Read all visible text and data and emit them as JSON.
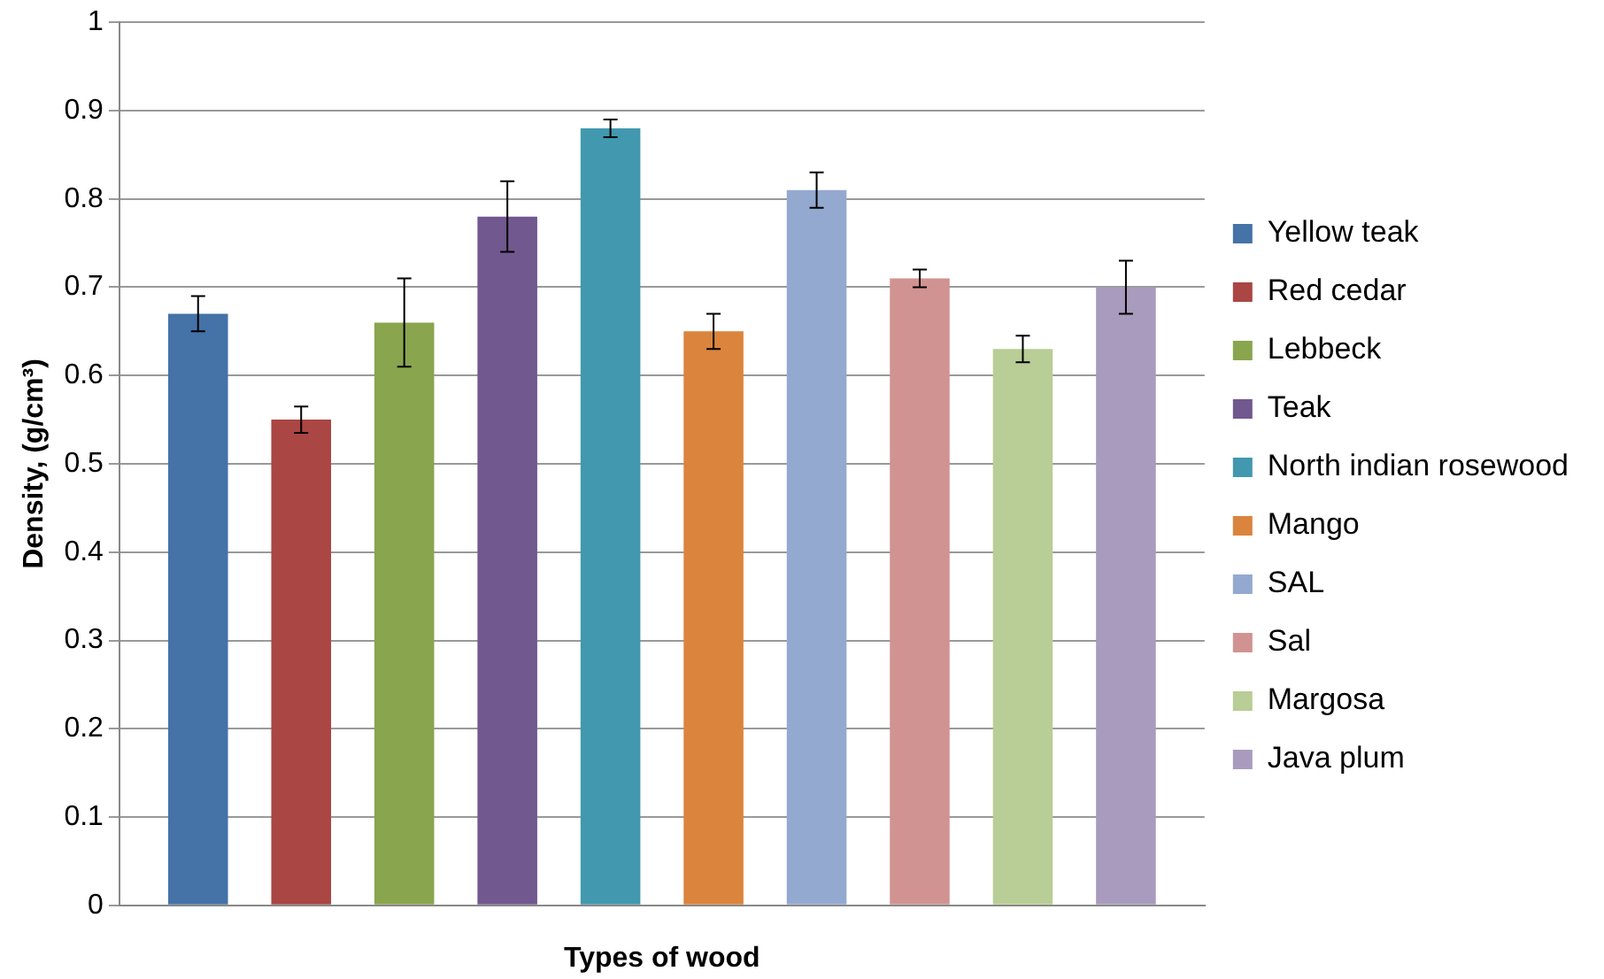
{
  "chart_data": {
    "type": "bar",
    "xlabel": "Types of wood",
    "ylabel": "Density, (g/cm³)",
    "categories": [
      null
    ],
    "series": [
      {
        "name": "Yellow teak",
        "color": "#4572a7",
        "values": [
          0.67
        ],
        "errors": [
          0.02
        ]
      },
      {
        "name": "Red cedar",
        "color": "#aa4643",
        "values": [
          0.55
        ],
        "errors": [
          0.015
        ]
      },
      {
        "name": "Lebbeck",
        "color": "#89a54e",
        "values": [
          0.66
        ],
        "errors": [
          0.05
        ]
      },
      {
        "name": "Teak",
        "color": "#71588f",
        "values": [
          0.78
        ],
        "errors": [
          0.04
        ]
      },
      {
        "name": "North indian rosewood",
        "color": "#4198af",
        "values": [
          0.88
        ],
        "errors": [
          0.01
        ]
      },
      {
        "name": "Mango",
        "color": "#db843d",
        "values": [
          0.65
        ],
        "errors": [
          0.02
        ]
      },
      {
        "name": "SAL",
        "color": "#93a9cf",
        "values": [
          0.81
        ],
        "errors": [
          0.02
        ]
      },
      {
        "name": "Sal",
        "color": "#d19392",
        "values": [
          0.71
        ],
        "errors": [
          0.01
        ]
      },
      {
        "name": "Margosa",
        "color": "#b9cd96",
        "values": [
          0.63
        ],
        "errors": [
          0.015
        ]
      },
      {
        "name": "Java plum",
        "color": "#a99bbd",
        "values": [
          0.7
        ],
        "errors": [
          0.03
        ]
      }
    ],
    "ylim": [
      0,
      1
    ],
    "yticks": [
      0,
      0.1,
      0.2,
      0.3,
      0.4,
      0.5,
      0.6,
      0.7,
      0.8,
      0.9,
      1
    ],
    "grid": "y",
    "legend": "right"
  }
}
